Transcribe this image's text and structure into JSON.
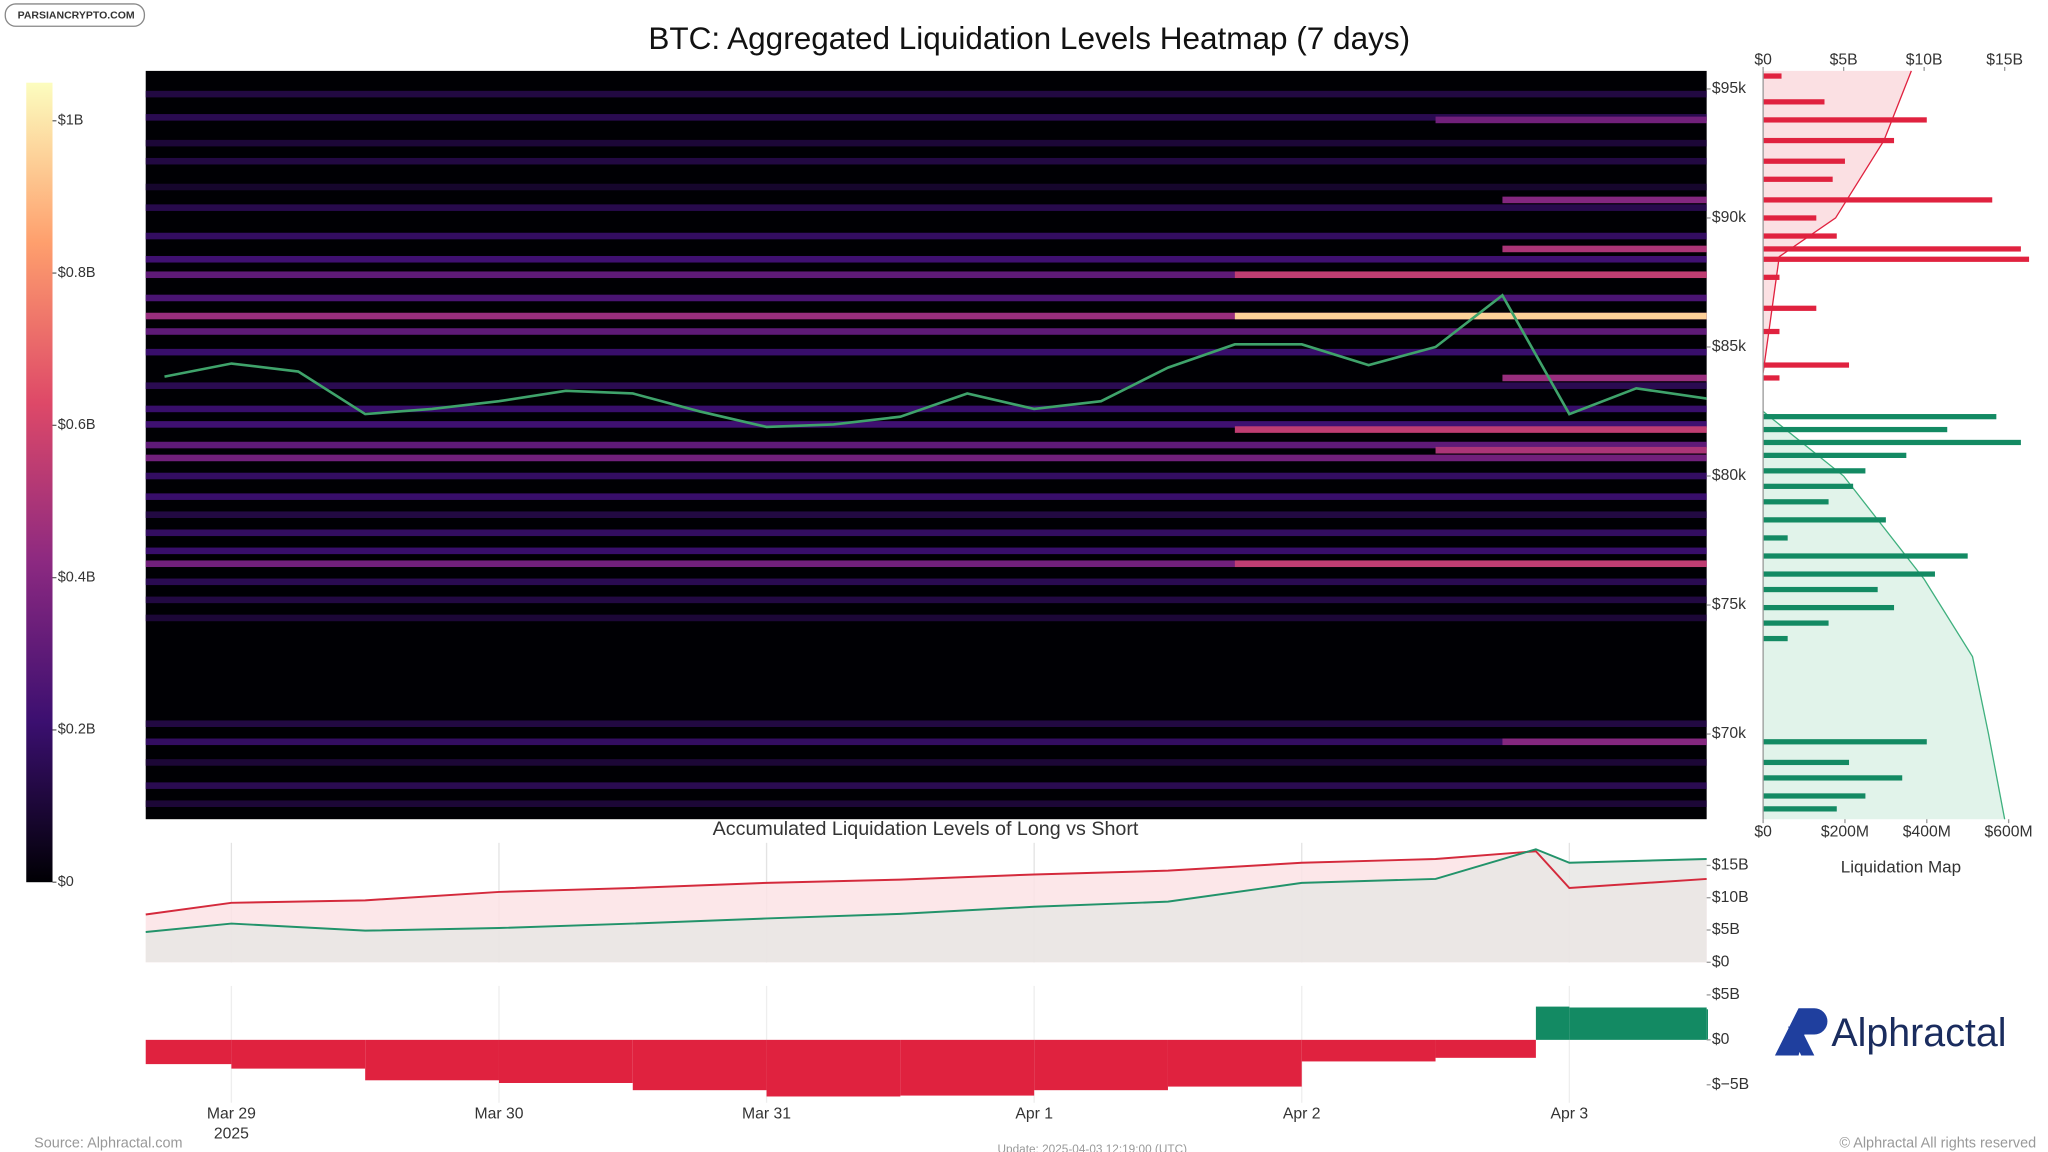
{
  "watermark": "PARSIANCRYPTO.COM",
  "source": "Source: Alphractal.com",
  "update": "Update: 2025-04-03 12:19:00 (UTC)",
  "copyright": "© Alphractal All rights reserved",
  "logo": "Alphractal",
  "chart_data": [
    {
      "type": "heatmap",
      "title": "BTC: Aggregated Liquidation Levels Heatmap (7 days)",
      "xlim": [
        "2025-03-28 16:19",
        "2025-04-03 12:19"
      ],
      "ylim": [
        66700,
        95700
      ],
      "yticks": [
        {
          "value": 70000,
          "label": "$70k"
        },
        {
          "value": 75000,
          "label": "$75k"
        },
        {
          "value": 80000,
          "label": "$80k"
        },
        {
          "value": 85000,
          "label": "$85k"
        },
        {
          "value": 90000,
          "label": "$90k"
        },
        {
          "value": 95000,
          "label": "$95k"
        }
      ],
      "colorscale": [
        "#000004",
        "#3b0f70",
        "#8c2981",
        "#de4968",
        "#fe9f6d",
        "#fcfdbf"
      ],
      "colorlim": [
        0,
        1050000000
      ],
      "colorticks": [
        {
          "value": 0,
          "label": "$0"
        },
        {
          "value": 200000000,
          "label": "$0.2B"
        },
        {
          "value": 400000000,
          "label": "$0.4B"
        },
        {
          "value": 600000000,
          "label": "$0.6B"
        },
        {
          "value": 800000000,
          "label": "$0.8B"
        },
        {
          "value": 1000000000,
          "label": "$1B"
        }
      ],
      "bands": [
        {
          "price": 94800,
          "value": 120000000,
          "start": "2025-03-28 16:19"
        },
        {
          "price": 93900,
          "value": 150000000,
          "start": "2025-03-28 16:19"
        },
        {
          "price": 92900,
          "value": 100000000,
          "start": "2025-03-28 16:19"
        },
        {
          "price": 92200,
          "value": 120000000,
          "start": "2025-03-28 16:19"
        },
        {
          "price": 91200,
          "value": 80000000,
          "start": "2025-03-28 16:19"
        },
        {
          "price": 90400,
          "value": 140000000,
          "start": "2025-03-28 16:19"
        },
        {
          "price": 89300,
          "value": 180000000,
          "start": "2025-03-28 16:19"
        },
        {
          "price": 88400,
          "value": 220000000,
          "start": "2025-03-28 16:19"
        },
        {
          "price": 87800,
          "value": 300000000,
          "start": "2025-03-28 16:19"
        },
        {
          "price": 86900,
          "value": 250000000,
          "start": "2025-03-28 16:19"
        },
        {
          "price": 86200,
          "value": 450000000,
          "start": "2025-03-28 16:19"
        },
        {
          "price": 85600,
          "value": 300000000,
          "start": "2025-03-28 16:19"
        },
        {
          "price": 84800,
          "value": 200000000,
          "start": "2025-03-28 16:19"
        },
        {
          "price": 83500,
          "value": 150000000,
          "start": "2025-03-28 16:19"
        },
        {
          "price": 82600,
          "value": 200000000,
          "start": "2025-03-28 16:19"
        },
        {
          "price": 82000,
          "value": 220000000,
          "start": "2025-03-28 16:19"
        },
        {
          "price": 81200,
          "value": 300000000,
          "start": "2025-03-28 16:19"
        },
        {
          "price": 80700,
          "value": 350000000,
          "start": "2025-03-28 16:19"
        },
        {
          "price": 80000,
          "value": 180000000,
          "start": "2025-03-28 16:19"
        },
        {
          "price": 79200,
          "value": 200000000,
          "start": "2025-03-28 16:19"
        },
        {
          "price": 78500,
          "value": 120000000,
          "start": "2025-03-28 16:19"
        },
        {
          "price": 77800,
          "value": 180000000,
          "start": "2025-03-28 16:19"
        },
        {
          "price": 77100,
          "value": 200000000,
          "start": "2025-03-28 16:19"
        },
        {
          "price": 76600,
          "value": 350000000,
          "start": "2025-03-28 16:19"
        },
        {
          "price": 75900,
          "value": 150000000,
          "start": "2025-03-28 16:19"
        },
        {
          "price": 75200,
          "value": 120000000,
          "start": "2025-03-28 16:19"
        },
        {
          "price": 74500,
          "value": 100000000,
          "start": "2025-03-28 16:19"
        },
        {
          "price": 70400,
          "value": 120000000,
          "start": "2025-03-28 16:19"
        },
        {
          "price": 69700,
          "value": 180000000,
          "start": "2025-03-28 16:19"
        },
        {
          "price": 68900,
          "value": 100000000,
          "start": "2025-03-28 16:19"
        },
        {
          "price": 68000,
          "value": 150000000,
          "start": "2025-03-28 16:19"
        },
        {
          "price": 67300,
          "value": 100000000,
          "start": "2025-03-28 16:19"
        },
        {
          "price": 93800,
          "value": 350000000,
          "start": "2025-04-02 12:00"
        },
        {
          "price": 90700,
          "value": 400000000,
          "start": "2025-04-02 18:00"
        },
        {
          "price": 88800,
          "value": 500000000,
          "start": "2025-04-02 18:00"
        },
        {
          "price": 87800,
          "value": 550000000,
          "start": "2025-04-01 18:00"
        },
        {
          "price": 86200,
          "value": 950000000,
          "start": "2025-04-01 18:00"
        },
        {
          "price": 83800,
          "value": 450000000,
          "start": "2025-04-02 18:00"
        },
        {
          "price": 81800,
          "value": 550000000,
          "start": "2025-04-01 18:00"
        },
        {
          "price": 81000,
          "value": 500000000,
          "start": "2025-04-02 12:00"
        },
        {
          "price": 76600,
          "value": 550000000,
          "start": "2025-04-01 18:00"
        },
        {
          "price": 69700,
          "value": 400000000,
          "start": "2025-04-02 18:00"
        }
      ],
      "x": [
        "2025-03-28 18:00",
        "2025-03-29 00:00",
        "2025-03-29 06:00",
        "2025-03-29 12:00",
        "2025-03-29 18:00",
        "2025-03-30 00:00",
        "2025-03-30 06:00",
        "2025-03-30 12:00",
        "2025-03-30 18:00",
        "2025-03-31 00:00",
        "2025-03-31 06:00",
        "2025-03-31 12:00",
        "2025-03-31 18:00",
        "2025-04-01 00:00",
        "2025-04-01 06:00",
        "2025-04-01 12:00",
        "2025-04-01 18:00",
        "2025-04-02 00:00",
        "2025-04-02 06:00",
        "2025-04-02 12:00",
        "2025-04-02 18:00",
        "2025-04-03 00:00",
        "2025-04-03 06:00",
        "2025-04-03 12:19"
      ],
      "price": {
        "color": "#3fa36b",
        "values": [
          83850,
          84360,
          84050,
          82400,
          82600,
          82900,
          83300,
          83200,
          82500,
          81900,
          82000,
          82300,
          83200,
          82600,
          82900,
          84200,
          85100,
          85100,
          84300,
          85000,
          87000,
          82400,
          83400,
          83000
        ]
      }
    },
    {
      "type": "hbar",
      "title": "Liquidation Map",
      "ylim": [
        66700,
        95700
      ],
      "xlim": [
        0,
        600
      ],
      "xticks": [
        {
          "value": 0,
          "label": "$0"
        },
        {
          "value": 200,
          "label": "$200M"
        },
        {
          "value": 400,
          "label": "$400M"
        },
        {
          "value": 600,
          "label": "$600M"
        }
      ],
      "x2lim": [
        0,
        15
      ],
      "x2ticks": [
        {
          "value": 0,
          "label": "$0"
        },
        {
          "value": 5,
          "label": "$5B"
        },
        {
          "value": 10,
          "label": "$10B"
        },
        {
          "value": 15,
          "label": "$15B"
        }
      ],
      "series": [
        {
          "color": "#e0223f",
          "prices": [
            95500,
            94500,
            93800,
            93000,
            92200,
            91500,
            90700,
            90000,
            89300,
            88800,
            88400,
            87700,
            86500,
            85600,
            84300,
            83800
          ],
          "values": [
            45,
            150,
            400,
            320,
            200,
            170,
            560,
            130,
            180,
            630,
            650,
            40,
            130,
            40,
            210,
            40
          ]
        },
        {
          "color": "#138a63",
          "prices": [
            82300,
            81800,
            81300,
            80800,
            80200,
            79600,
            79000,
            78300,
            77600,
            76900,
            76200,
            75600,
            74900,
            74300,
            73700,
            69700,
            68900,
            68300,
            67600,
            67100
          ],
          "values": [
            570,
            450,
            630,
            350,
            250,
            220,
            160,
            300,
            60,
            500,
            420,
            280,
            320,
            160,
            60,
            400,
            210,
            340,
            250,
            180
          ]
        }
      ],
      "cumulative": [
        {
          "axis": "x2",
          "color": "#e0223f",
          "fill": "#fbe0e3",
          "prices": [
            95700,
            93000,
            90000,
            88500,
            84000
          ],
          "values": [
            9.2,
            7.5,
            4.5,
            1,
            0
          ]
        },
        {
          "axis": "x2",
          "color": "#3fb07e",
          "fill": "#e1f3ea",
          "prices": [
            82500,
            80000,
            78000,
            76000,
            73000,
            70000,
            66700
          ],
          "values": [
            0,
            5,
            7.5,
            10,
            13,
            14,
            15
          ]
        }
      ]
    },
    {
      "type": "line",
      "title": "Accumulated Liquidation Levels of Long vs Short",
      "xlim": [
        "2025-03-28 16:19",
        "2025-04-03 12:19"
      ],
      "ylim": [
        0,
        18.5
      ],
      "yticks": [
        {
          "value": 0,
          "label": "$0"
        },
        {
          "value": 5,
          "label": "$5B"
        },
        {
          "value": 10,
          "label": "$10B"
        },
        {
          "value": 15,
          "label": "$15B"
        }
      ],
      "x": [
        "2025-03-28 16:19",
        "2025-03-29 00:00",
        "2025-03-29 12:00",
        "2025-03-30 00:00",
        "2025-03-30 12:00",
        "2025-03-31 00:00",
        "2025-03-31 12:00",
        "2025-04-01 00:00",
        "2025-04-01 12:00",
        "2025-04-02 00:00",
        "2025-04-02 12:00",
        "2025-04-02 21:00",
        "2025-04-03 00:00",
        "2025-04-03 12:19"
      ],
      "series": [
        {
          "color": "#d42a3c",
          "fill": "#fbe3e5",
          "values": [
            7.4,
            9.2,
            9.6,
            10.9,
            11.5,
            12.3,
            12.8,
            13.6,
            14.2,
            15.4,
            16.0,
            17.2,
            11.5,
            12.9
          ]
        },
        {
          "color": "#22936a",
          "fill": "#e8e6e4",
          "values": [
            4.7,
            6.0,
            4.9,
            5.3,
            6.0,
            6.8,
            7.5,
            8.6,
            9.4,
            12.3,
            12.9,
            17.5,
            15.4,
            16.0
          ]
        }
      ]
    },
    {
      "type": "step",
      "xlim": [
        "2025-03-28 16:19",
        "2025-04-03 12:19"
      ],
      "ylim": [
        -7,
        6
      ],
      "yticks": [
        {
          "value": -5,
          "label": "$−5B"
        },
        {
          "value": 0,
          "label": "$0"
        },
        {
          "value": 5,
          "label": "$5B"
        }
      ],
      "xticks": [
        {
          "value": "2025-03-29 00:00",
          "label": "Mar 29"
        },
        {
          "value": "2025-03-30 00:00",
          "label": "Mar 30"
        },
        {
          "value": "2025-03-31 00:00",
          "label": "Mar 31"
        },
        {
          "value": "2025-04-01 00:00",
          "label": "Apr 1"
        },
        {
          "value": "2025-04-02 00:00",
          "label": "Apr 2"
        },
        {
          "value": "2025-04-03 00:00",
          "label": "Apr 3"
        }
      ],
      "x_year": "2025",
      "positive_color": "#138a63",
      "negative_color": "#e0223f",
      "x": [
        "2025-03-28 16:19",
        "2025-03-29 00:00",
        "2025-03-29 12:00",
        "2025-03-30 00:00",
        "2025-03-30 12:00",
        "2025-03-31 00:00",
        "2025-03-31 12:00",
        "2025-04-01 00:00",
        "2025-04-01 12:00",
        "2025-04-02 00:00",
        "2025-04-02 12:00",
        "2025-04-02 21:00",
        "2025-04-03 00:00",
        "2025-04-03 12:19"
      ],
      "values": [
        -2.7,
        -3.2,
        -4.5,
        -4.8,
        -5.6,
        -6.3,
        -6.2,
        -5.6,
        -5.2,
        -2.4,
        -2.0,
        3.7,
        3.6,
        3.4
      ]
    }
  ]
}
